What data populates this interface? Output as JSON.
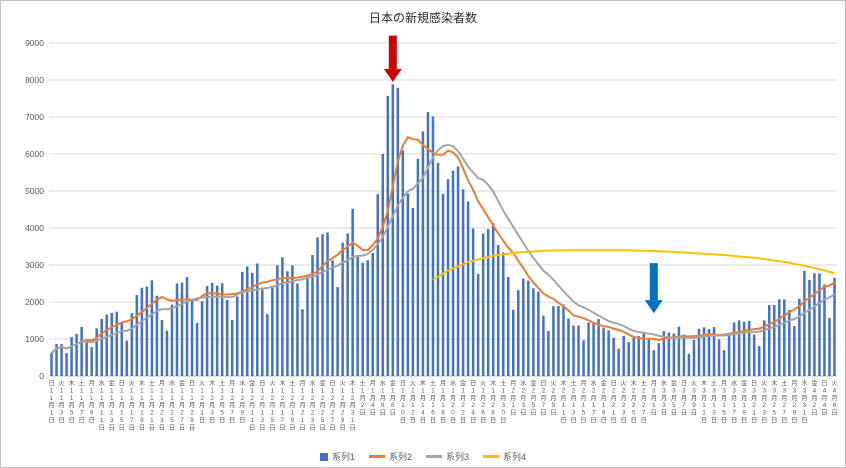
{
  "title": "日本の新規感染者数",
  "legend": [
    {
      "label": "系列1",
      "type": "bar",
      "color": "#4472C4"
    },
    {
      "label": "系列2",
      "type": "line",
      "color": "#ED7D31"
    },
    {
      "label": "系列3",
      "type": "line",
      "color": "#A5A5A5"
    },
    {
      "label": "系列4",
      "type": "line",
      "color": "#FFC000"
    }
  ],
  "chart_data": {
    "type": "bar",
    "title": "日本の新規感染者数",
    "ylim": [
      0,
      9000
    ],
    "y_ticks": [
      0,
      1000,
      2000,
      3000,
      4000,
      5000,
      6000,
      7000,
      8000,
      9000
    ],
    "grid": true,
    "legend_position": "bottom",
    "x_axis": {
      "start_weekday": "日",
      "weekdays": [
        "日",
        "月",
        "火",
        "水",
        "木",
        "金",
        "土"
      ],
      "months": [
        {
          "month": 11,
          "days": 30
        },
        {
          "month": 12,
          "days": 31
        },
        {
          "month": 1,
          "days": 31
        },
        {
          "month": 2,
          "days": 28
        },
        {
          "month": 3,
          "days": 31
        },
        {
          "month": 4,
          "days": 6
        }
      ],
      "tick_interval_days": 2,
      "label_format": "weekday + month月day日 (vertical)"
    },
    "series": [
      {
        "name": "系列1",
        "type": "bar",
        "color": "#4472C4",
        "values": [
          614,
          871,
          868,
          620,
          1050,
          1141,
          1325,
          951,
          780,
          1284,
          1543,
          1660,
          1704,
          1737,
          1441,
          960,
          1699,
          2191,
          2386,
          2418,
          2586,
          2168,
          1515,
          1229,
          1930,
          2501,
          2527,
          2674,
          2066,
          1438,
          2022,
          2430,
          2518,
          2442,
          2508,
          2058,
          1515,
          2152,
          2812,
          2961,
          2790,
          3041,
          2388,
          1680,
          2432,
          2994,
          3211,
          2829,
          2988,
          2501,
          1806,
          2688,
          3271,
          3742,
          3832,
          3881,
          3127,
          2403,
          3604,
          3852,
          4520,
          3246,
          3059,
          3127,
          3325,
          4915,
          6001,
          7570,
          7882,
          7790,
          6097,
          4925,
          4539,
          5870,
          6610,
          7133,
          7014,
          5759,
          4925,
          5320,
          5549,
          5662,
          5045,
          4717,
          3990,
          2764,
          3853,
          3971,
          4133,
          3539,
          3344,
          2673,
          1792,
          2324,
          2631,
          2576,
          2372,
          2279,
          1631,
          1216,
          1887,
          1891,
          1933,
          1552,
          1361,
          1364,
          965,
          1443,
          1448,
          1536,
          1301,
          1234,
          1032,
          739,
          1083,
          919,
          1076,
          1083,
          1147,
          999,
          698,
          888,
          1213,
          1173,
          1148,
          1330,
          1121,
          599,
          974,
          1277,
          1316,
          1271,
          1320,
          988,
          695,
          1133,
          1448,
          1500,
          1463,
          1486,
          1121,
          807,
          1504,
          1918,
          1917,
          2070,
          2071,
          1785,
          1348,
          2087,
          2843,
          2597,
          2778,
          2774,
          2472,
          1571,
          2654
        ]
      },
      {
        "name": "系列2",
        "type": "line",
        "color": "#ED7D31",
        "derived": "7-day moving average of 系列1",
        "window": 7
      },
      {
        "name": "系列3",
        "type": "line",
        "color": "#A5A5A5",
        "derived": "14-day moving average of 系列1",
        "window": 14
      },
      {
        "name": "系列4",
        "type": "line",
        "color": "#FFC000",
        "derived": "piecewise line starting mid-January",
        "points": [
          [
            76,
            2600
          ],
          [
            79,
            2850
          ],
          [
            83,
            3080
          ],
          [
            88,
            3250
          ],
          [
            93,
            3340
          ],
          [
            99,
            3390
          ],
          [
            106,
            3400
          ],
          [
            113,
            3400
          ],
          [
            120,
            3380
          ],
          [
            127,
            3330
          ],
          [
            134,
            3270
          ],
          [
            141,
            3180
          ],
          [
            147,
            3060
          ],
          [
            151,
            2950
          ],
          [
            154,
            2850
          ],
          [
            156,
            2780
          ]
        ]
      }
    ],
    "annotations": [
      {
        "type": "arrow",
        "direction": "down",
        "color": "#D00000",
        "x_index": 68,
        "y_from": 9200,
        "y_to": 7950,
        "meaning": "points at peak bar (1月8日, 7882)"
      },
      {
        "type": "arrow",
        "direction": "down",
        "color": "#0070C0",
        "x_index": 120,
        "y_from": 3050,
        "y_to": 1700,
        "meaning": "points at early-March low plateau"
      }
    ]
  }
}
